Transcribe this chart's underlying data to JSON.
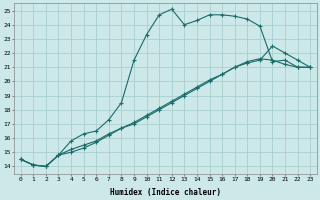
{
  "xlabel": "Humidex (Indice chaleur)",
  "ylabel": "",
  "bg_color": "#cce8e8",
  "grid_color": "#aacfcf",
  "line_color": "#1a6b6b",
  "xlim": [
    -0.5,
    23.5
  ],
  "ylim": [
    13.5,
    25.5
  ],
  "xticks": [
    0,
    1,
    2,
    3,
    4,
    5,
    6,
    7,
    8,
    9,
    10,
    11,
    12,
    13,
    14,
    15,
    16,
    17,
    18,
    19,
    20,
    21,
    22,
    23
  ],
  "yticks": [
    14,
    15,
    16,
    17,
    18,
    19,
    20,
    21,
    22,
    23,
    24,
    25
  ],
  "line1_x": [
    0,
    1,
    2,
    3,
    4,
    5,
    6,
    7,
    8,
    9,
    10,
    11,
    12,
    13,
    14,
    15,
    16,
    17,
    18,
    19,
    20,
    21,
    22,
    23
  ],
  "line1_y": [
    14.5,
    14.1,
    14.0,
    14.8,
    15.8,
    16.3,
    16.5,
    17.3,
    18.5,
    21.5,
    23.3,
    24.7,
    25.1,
    24.0,
    24.3,
    24.7,
    24.7,
    24.6,
    24.4,
    23.9,
    21.4,
    21.5,
    21.0,
    21.0
  ],
  "line2_x": [
    0,
    1,
    2,
    3,
    4,
    5,
    6,
    7,
    8,
    9,
    10,
    11,
    12,
    13,
    14,
    15,
    16,
    17,
    18,
    19,
    20,
    21,
    22,
    23
  ],
  "line2_y": [
    14.5,
    14.1,
    14.0,
    14.8,
    15.2,
    15.5,
    15.8,
    16.3,
    16.7,
    17.0,
    17.5,
    18.0,
    18.5,
    19.0,
    19.5,
    20.0,
    20.5,
    21.0,
    21.3,
    21.5,
    22.5,
    22.0,
    21.5,
    21.0
  ],
  "line3_x": [
    0,
    1,
    2,
    3,
    4,
    5,
    6,
    7,
    8,
    9,
    10,
    11,
    12,
    13,
    14,
    15,
    16,
    17,
    18,
    19,
    20,
    21,
    22,
    23
  ],
  "line3_y": [
    14.5,
    14.1,
    14.0,
    14.8,
    15.0,
    15.3,
    15.7,
    16.2,
    16.7,
    17.1,
    17.6,
    18.1,
    18.6,
    19.1,
    19.6,
    20.1,
    20.5,
    21.0,
    21.4,
    21.6,
    21.5,
    21.2,
    21.0,
    21.0
  ]
}
